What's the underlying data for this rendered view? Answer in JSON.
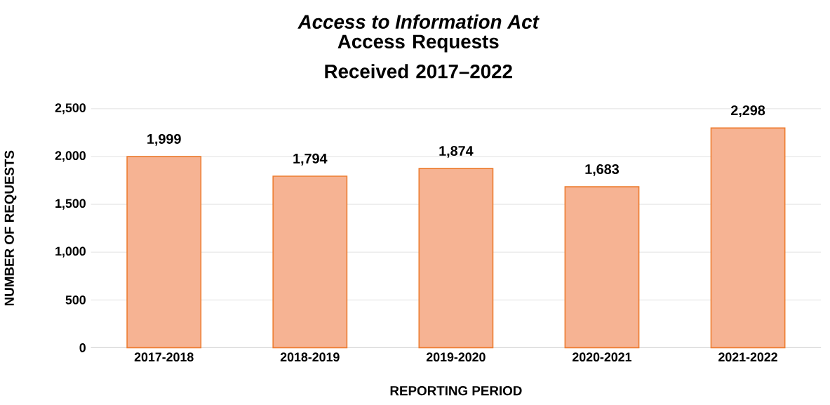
{
  "chart_data": {
    "type": "bar",
    "title": "Access to Information Act",
    "subtitle": "Access Requests Received 2017–2022",
    "xlabel": "REPORTING PERIOD",
    "ylabel": "NUMBER OF REQUESTS",
    "categories": [
      "2017-2018",
      "2018-2019",
      "2019-2020",
      "2020-2021",
      "2021-2022"
    ],
    "values": [
      1999,
      1794,
      1874,
      1683,
      2298
    ],
    "value_labels": [
      "1,999",
      "1,794",
      "1,874",
      "1,683",
      "2,298"
    ],
    "color": "#f6b393",
    "ylim": [
      0,
      2500
    ],
    "yticks": [
      {
        "value": 0,
        "label": "0"
      },
      {
        "value": 500,
        "label": "500"
      },
      {
        "value": 1000,
        "label": "1,000"
      },
      {
        "value": 1500,
        "label": "1,500"
      },
      {
        "value": 2000,
        "label": "2,000"
      },
      {
        "value": 2500,
        "label": "2,500"
      }
    ],
    "grid": "y"
  }
}
